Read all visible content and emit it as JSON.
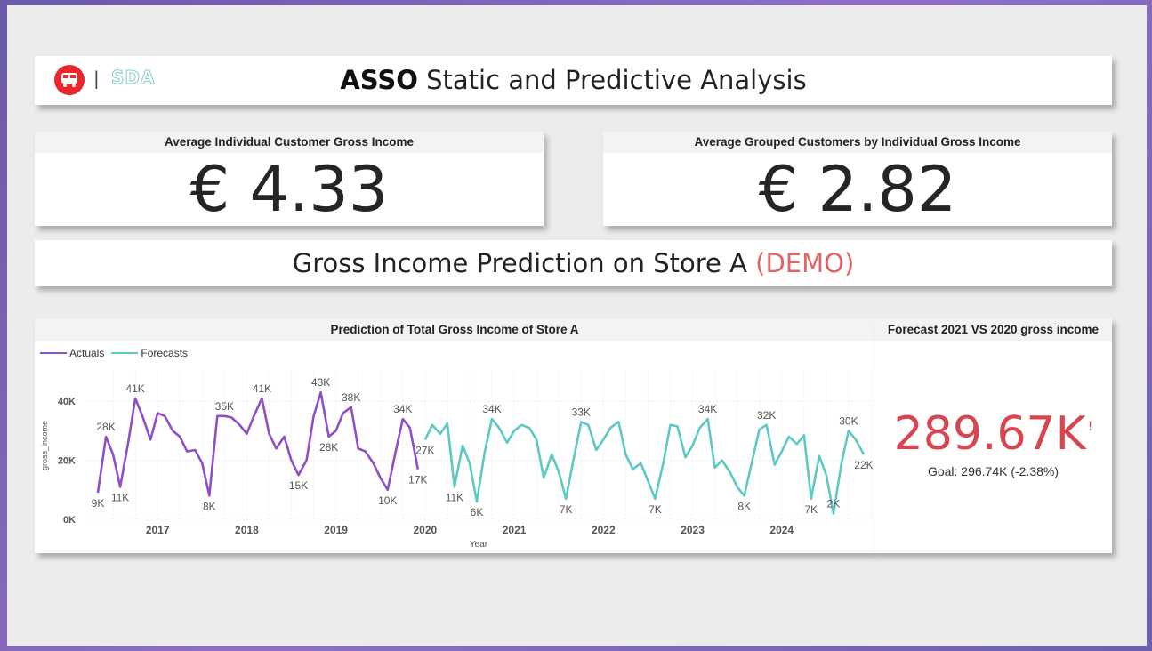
{
  "header": {
    "title_bold": "ASSO",
    "title_rest": " Static and Predictive Analysis",
    "logo_separator": "|",
    "logo_text": "SDA",
    "brand_color": "#e8262b"
  },
  "kpis": {
    "left": {
      "title": "Average Individual Customer Gross Income",
      "value": "€ 4.33"
    },
    "right": {
      "title": "Average Grouped Customers by Individual Gross Income",
      "value": "€ 2.82"
    }
  },
  "prediction": {
    "title": "Gross Income Prediction on Store A ",
    "demo": "(DEMO)"
  },
  "gauge": {
    "title": "Forecast 2021 VS 2020 gross income",
    "value": "289.67K",
    "alert": "!",
    "goal": "Goal: 296.74K (-2.38%)"
  },
  "chart_data": {
    "type": "line",
    "title": "Prediction of Total Gross Income of Store A",
    "xlabel": "Year",
    "ylabel": "gross_income",
    "x_ticks": [
      "2017",
      "2018",
      "2019",
      "2020",
      "2021",
      "2022",
      "2023",
      "2024"
    ],
    "y_ticks": [
      "0K",
      "20K",
      "40K"
    ],
    "ylim": [
      0,
      50000
    ],
    "legend": "top-left",
    "grid": true,
    "series": [
      {
        "name": "Actuals",
        "color": "#8e4fc7",
        "x": [
          2016.33,
          2016.42,
          2016.5,
          2016.58,
          2016.67,
          2016.75,
          2016.83,
          2016.92,
          2017.0,
          2017.08,
          2017.17,
          2017.25,
          2017.33,
          2017.42,
          2017.5,
          2017.58,
          2017.67,
          2017.75,
          2017.83,
          2017.92,
          2018.0,
          2018.08,
          2018.17,
          2018.25,
          2018.33,
          2018.42,
          2018.5,
          2018.58,
          2018.67,
          2018.75,
          2018.83,
          2018.92,
          2019.0,
          2019.08,
          2019.17,
          2019.25,
          2019.33,
          2019.42,
          2019.5,
          2019.58,
          2019.67,
          2019.75,
          2019.83,
          2019.92
        ],
        "y": [
          9000,
          28000,
          22000,
          11000,
          26000,
          41000,
          35000,
          27000,
          36000,
          35000,
          30000,
          28000,
          23000,
          23500,
          19000,
          8000,
          35000,
          35000,
          34500,
          32000,
          29000,
          35000,
          41000,
          29000,
          24000,
          28000,
          20000,
          15000,
          20000,
          35000,
          43000,
          28000,
          30000,
          36000,
          38000,
          24000,
          23000,
          19000,
          14000,
          10000,
          23000,
          34000,
          31000,
          17000
        ]
      },
      {
        "name": "Forecasts",
        "color": "#5ec9c2",
        "x": [
          2020.0,
          2020.08,
          2020.17,
          2020.25,
          2020.33,
          2020.42,
          2020.5,
          2020.58,
          2020.67,
          2020.75,
          2020.83,
          2020.92,
          2021.0,
          2021.08,
          2021.17,
          2021.25,
          2021.33,
          2021.42,
          2021.5,
          2021.58,
          2021.67,
          2021.75,
          2021.83,
          2021.92,
          2022.0,
          2022.08,
          2022.17,
          2022.25,
          2022.33,
          2022.42,
          2022.5,
          2022.58,
          2022.67,
          2022.75,
          2022.83,
          2022.92,
          2023.0,
          2023.08,
          2023.17,
          2023.25,
          2023.33,
          2023.42,
          2023.5,
          2023.58,
          2023.67,
          2023.75,
          2023.83,
          2023.92,
          2024.0,
          2024.08,
          2024.17,
          2024.25,
          2024.33,
          2024.42,
          2024.5,
          2024.58,
          2024.67,
          2024.75,
          2024.83,
          2024.92
        ],
        "y": [
          27000,
          32000,
          29000,
          32500,
          11000,
          25000,
          19000,
          6000,
          23000,
          34000,
          31000,
          26000,
          30000,
          32000,
          31000,
          27000,
          14000,
          22000,
          16000,
          7000,
          21000,
          33000,
          32000,
          23500,
          27000,
          31000,
          33000,
          22000,
          17000,
          19000,
          13000,
          7000,
          19000,
          32000,
          31500,
          21000,
          25000,
          31000,
          34000,
          17500,
          20000,
          16000,
          11000,
          8000,
          20000,
          30500,
          32000,
          18500,
          23000,
          28000,
          25500,
          28500,
          7000,
          21500,
          15000,
          2000,
          19000,
          30000,
          27000,
          22000
        ]
      }
    ],
    "data_labels": [
      {
        "series": "Actuals",
        "x": 2016.33,
        "y": 9000,
        "text": "9K",
        "pos": "below"
      },
      {
        "series": "Actuals",
        "x": 2016.42,
        "y": 28000,
        "text": "28K",
        "pos": "above"
      },
      {
        "series": "Actuals",
        "x": 2016.58,
        "y": 11000,
        "text": "11K",
        "pos": "below"
      },
      {
        "series": "Actuals",
        "x": 2016.75,
        "y": 41000,
        "text": "41K",
        "pos": "above"
      },
      {
        "series": "Actuals",
        "x": 2017.58,
        "y": 8000,
        "text": "8K",
        "pos": "below"
      },
      {
        "series": "Actuals",
        "x": 2017.75,
        "y": 35000,
        "text": "35K",
        "pos": "above"
      },
      {
        "series": "Actuals",
        "x": 2018.17,
        "y": 41000,
        "text": "41K",
        "pos": "above"
      },
      {
        "series": "Actuals",
        "x": 2018.58,
        "y": 15000,
        "text": "15K",
        "pos": "below"
      },
      {
        "series": "Actuals",
        "x": 2018.83,
        "y": 43000,
        "text": "43K",
        "pos": "above"
      },
      {
        "series": "Actuals",
        "x": 2018.92,
        "y": 28000,
        "text": "28K",
        "pos": "below"
      },
      {
        "series": "Actuals",
        "x": 2019.17,
        "y": 38000,
        "text": "38K",
        "pos": "above"
      },
      {
        "series": "Actuals",
        "x": 2019.58,
        "y": 10000,
        "text": "10K",
        "pos": "below"
      },
      {
        "series": "Actuals",
        "x": 2019.75,
        "y": 34000,
        "text": "34K",
        "pos": "above"
      },
      {
        "series": "Actuals",
        "x": 2019.92,
        "y": 17000,
        "text": "17K",
        "pos": "below"
      },
      {
        "series": "Forecasts",
        "x": 2020.0,
        "y": 27000,
        "text": "27K",
        "pos": "below"
      },
      {
        "series": "Forecasts",
        "x": 2020.33,
        "y": 11000,
        "text": "11K",
        "pos": "below"
      },
      {
        "series": "Forecasts",
        "x": 2020.58,
        "y": 6000,
        "text": "6K",
        "pos": "below"
      },
      {
        "series": "Forecasts",
        "x": 2020.75,
        "y": 34000,
        "text": "34K",
        "pos": "above"
      },
      {
        "series": "Forecasts",
        "x": 2021.58,
        "y": 7000,
        "text": "7K",
        "pos": "below"
      },
      {
        "series": "Forecasts",
        "x": 2021.75,
        "y": 33000,
        "text": "33K",
        "pos": "above"
      },
      {
        "series": "Forecasts",
        "x": 2022.58,
        "y": 7000,
        "text": "7K",
        "pos": "below"
      },
      {
        "series": "Forecasts",
        "x": 2023.17,
        "y": 34000,
        "text": "34K",
        "pos": "above"
      },
      {
        "series": "Forecasts",
        "x": 2023.58,
        "y": 8000,
        "text": "8K",
        "pos": "below"
      },
      {
        "series": "Forecasts",
        "x": 2023.83,
        "y": 32000,
        "text": "32K",
        "pos": "above"
      },
      {
        "series": "Forecasts",
        "x": 2024.33,
        "y": 7000,
        "text": "7K",
        "pos": "below"
      },
      {
        "series": "Forecasts",
        "x": 2024.58,
        "y": 2000,
        "text": "2K",
        "pos": "above"
      },
      {
        "series": "Forecasts",
        "x": 2024.75,
        "y": 30000,
        "text": "30K",
        "pos": "above"
      },
      {
        "series": "Forecasts",
        "x": 2024.92,
        "y": 22000,
        "text": "22K",
        "pos": "below"
      }
    ]
  }
}
